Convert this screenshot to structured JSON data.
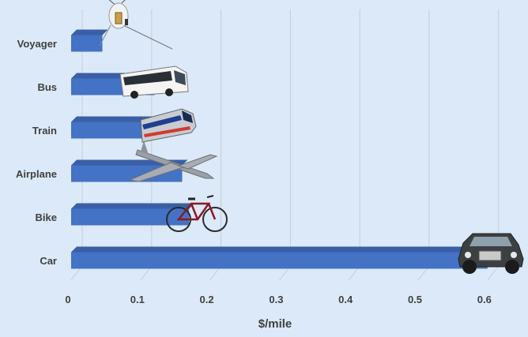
{
  "chart_data": {
    "type": "bar",
    "orientation": "horizontal",
    "categories": [
      "Voyager",
      "Bus",
      "Train",
      "Airplane",
      "Bike",
      "Car"
    ],
    "values": [
      0.045,
      0.12,
      0.13,
      0.16,
      0.17,
      0.6
    ],
    "title": "",
    "xlabel": "$/mile",
    "ylabel": "",
    "xlim": [
      0,
      0.65
    ],
    "xticks": [
      "0",
      "0.1",
      "0.2",
      "0.3",
      "0.4",
      "0.5",
      "0.6"
    ],
    "grid": true,
    "legend": "none",
    "bar_images": [
      "spacecraft-icon",
      "bus-icon",
      "train-icon",
      "airplane-icon",
      "bicycle-icon",
      "suv-icon"
    ]
  },
  "colors": {
    "background": "#dbe9f8",
    "bar_front": "#4472c4",
    "bar_top": "#3a5fa6",
    "gridline": "#c9cdd3",
    "text": "#404040"
  }
}
